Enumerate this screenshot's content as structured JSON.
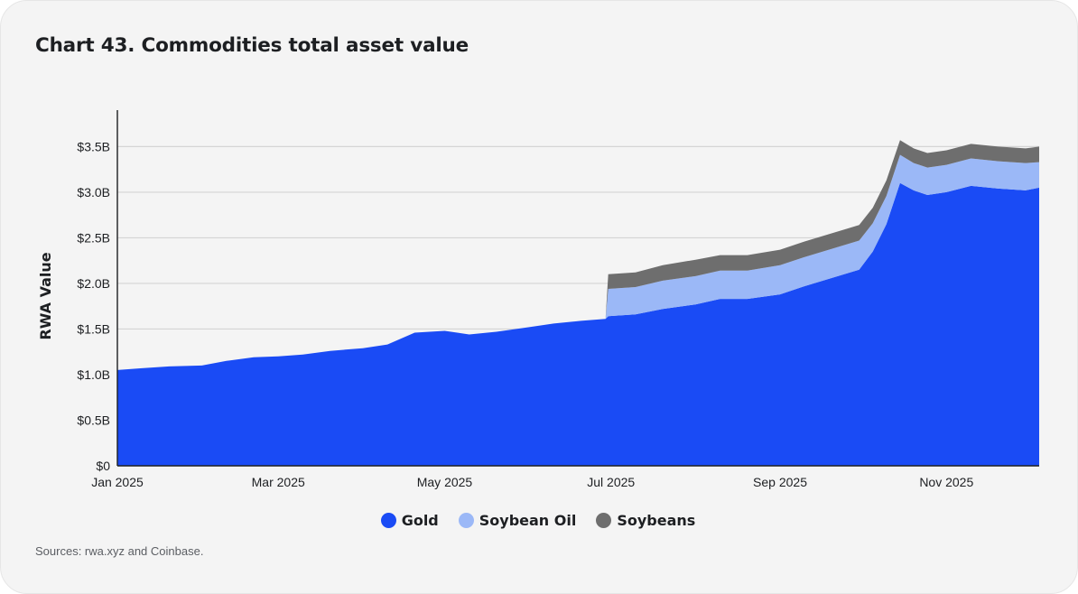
{
  "title": "Chart 43. Commodities total asset value",
  "source": "Sources: rwa.xyz and Coinbase.",
  "colors": {
    "gold": "#1a4bf5",
    "soybean_oil": "#9bb8f7",
    "soybeans": "#6e6e6e",
    "grid": "#d4d4d4",
    "axis": "#1d1f22",
    "text": "#1d1f22"
  },
  "chart_data": {
    "type": "area",
    "stacked": true,
    "ylabel": "RWA Value",
    "xlabel": "",
    "ylim": [
      0,
      3.9
    ],
    "y_unit": "billion USD",
    "yticks": [
      {
        "value": 0,
        "label": "$0"
      },
      {
        "value": 0.5,
        "label": "$0.5B"
      },
      {
        "value": 1.0,
        "label": "$1.0B"
      },
      {
        "value": 1.5,
        "label": "$1.5B"
      },
      {
        "value": 2.0,
        "label": "$2.0B"
      },
      {
        "value": 2.5,
        "label": "$2.5B"
      },
      {
        "value": 3.0,
        "label": "$3.0B"
      },
      {
        "value": 3.5,
        "label": "$3.5B"
      }
    ],
    "xlim": [
      "2025-01-01",
      "2025-12-05"
    ],
    "xticks": [
      {
        "value": "2025-01-01",
        "label": "Jan 2025"
      },
      {
        "value": "2025-03-01",
        "label": "Mar 2025"
      },
      {
        "value": "2025-05-01",
        "label": "May 2025"
      },
      {
        "value": "2025-07-01",
        "label": "Jul 2025"
      },
      {
        "value": "2025-09-01",
        "label": "Sep 2025"
      },
      {
        "value": "2025-11-01",
        "label": "Nov 2025"
      }
    ],
    "legend_position": "bottom-center",
    "grid": true,
    "x": [
      "2025-01-01",
      "2025-01-10",
      "2025-01-20",
      "2025-02-01",
      "2025-02-10",
      "2025-02-20",
      "2025-03-01",
      "2025-03-10",
      "2025-03-20",
      "2025-04-01",
      "2025-04-10",
      "2025-04-20",
      "2025-05-01",
      "2025-05-10",
      "2025-05-20",
      "2025-06-01",
      "2025-06-10",
      "2025-06-20",
      "2025-06-29",
      "2025-06-30",
      "2025-07-10",
      "2025-07-20",
      "2025-08-01",
      "2025-08-10",
      "2025-08-20",
      "2025-09-01",
      "2025-09-10",
      "2025-09-20",
      "2025-09-30",
      "2025-10-05",
      "2025-10-10",
      "2025-10-15",
      "2025-10-20",
      "2025-10-25",
      "2025-11-01",
      "2025-11-10",
      "2025-11-20",
      "2025-11-30",
      "2025-12-05"
    ],
    "series": [
      {
        "name": "Gold",
        "values": [
          1.05,
          1.07,
          1.09,
          1.1,
          1.15,
          1.19,
          1.2,
          1.22,
          1.26,
          1.29,
          1.33,
          1.46,
          1.48,
          1.44,
          1.47,
          1.52,
          1.56,
          1.59,
          1.61,
          1.64,
          1.66,
          1.72,
          1.77,
          1.83,
          1.83,
          1.88,
          1.97,
          2.06,
          2.15,
          2.35,
          2.65,
          3.1,
          3.02,
          2.97,
          3.0,
          3.07,
          3.04,
          3.02,
          3.05
        ]
      },
      {
        "name": "Soybean Oil",
        "values": [
          0,
          0,
          0,
          0,
          0,
          0,
          0,
          0,
          0,
          0,
          0,
          0,
          0,
          0,
          0,
          0,
          0,
          0,
          0,
          0.3,
          0.3,
          0.31,
          0.31,
          0.31,
          0.31,
          0.32,
          0.32,
          0.32,
          0.32,
          0.31,
          0.31,
          0.31,
          0.3,
          0.3,
          0.3,
          0.3,
          0.3,
          0.3,
          0.28
        ]
      },
      {
        "name": "Soybeans",
        "values": [
          0,
          0,
          0,
          0,
          0,
          0,
          0,
          0,
          0,
          0,
          0,
          0,
          0,
          0,
          0,
          0,
          0,
          0,
          0,
          0.16,
          0.16,
          0.17,
          0.18,
          0.17,
          0.17,
          0.17,
          0.17,
          0.17,
          0.17,
          0.17,
          0.17,
          0.16,
          0.16,
          0.16,
          0.16,
          0.16,
          0.16,
          0.16,
          0.17
        ]
      }
    ]
  }
}
